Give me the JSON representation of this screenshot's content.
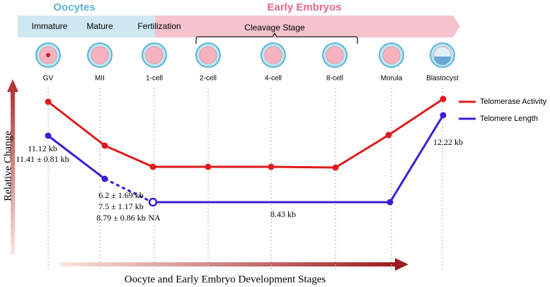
{
  "header": {
    "groups": [
      "Oocytes",
      "Early Embryos"
    ],
    "phases": [
      "Immature",
      "Mature",
      "Fertilization",
      "Cleavage Stage"
    ]
  },
  "stages": [
    "GV",
    "MII",
    "1-cell",
    "2-cell",
    "4-cell",
    "8-cell",
    "Morula",
    "Blastocyst"
  ],
  "legend": [
    "Telomerase Activity",
    "Telomere Length"
  ],
  "annotations": [
    "11.12 kb",
    "11.41 ± 0.81 kb",
    "6.2 ± 1.69 kb",
    "7.5 ± 1.17 kb",
    "8.79 ± 0.86 kb",
    "NA",
    "8.43 kb",
    "12.22 kb"
  ],
  "y_axis_label": "Relative Change",
  "x_axis_label": "Oocyte and Early Embryo Development Stages"
}
